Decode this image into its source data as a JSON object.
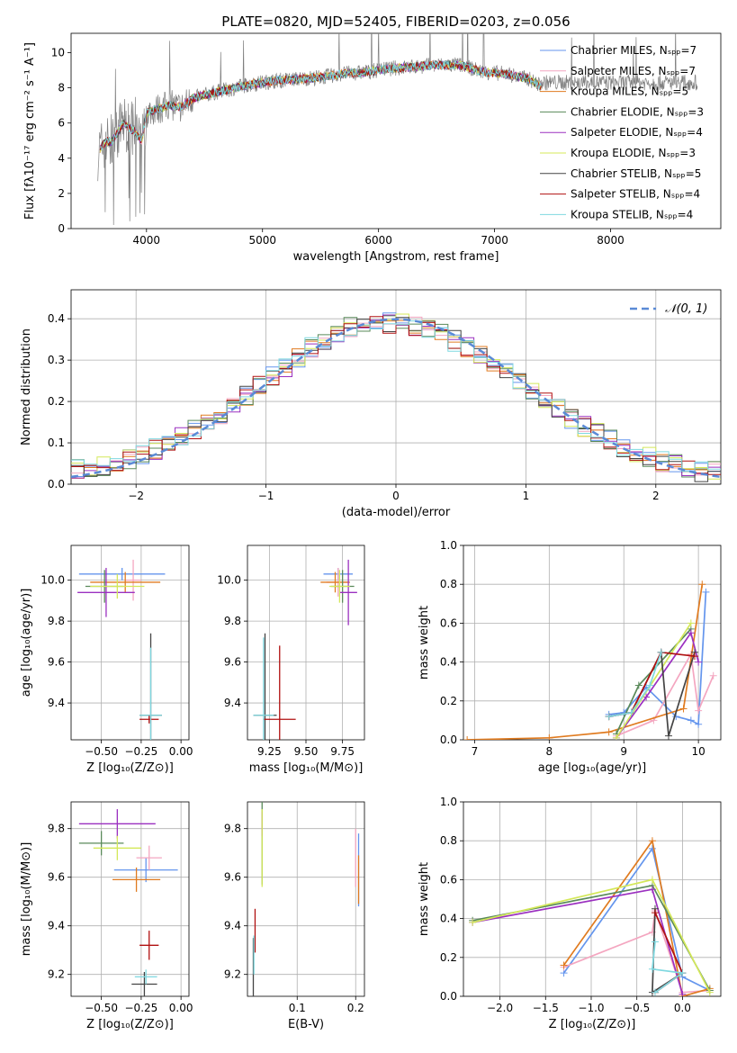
{
  "chart_data": [
    {
      "id": "spectrum",
      "type": "line",
      "title": "PLATE=0820, MJD=52405, FIBERID=0203, z=0.056",
      "xlabel": "wavelength [Angstrom, rest frame]",
      "ylabel": "Flux [fλ10⁻¹⁷ erg cm⁻² s⁻¹ A⁻¹]",
      "xlim": [
        3350,
        8950
      ],
      "ylim": [
        0,
        11.1
      ],
      "xticks": [
        4000,
        5000,
        6000,
        7000,
        8000
      ],
      "yticks": [
        0,
        2,
        4,
        6,
        8,
        10
      ],
      "grid": false,
      "legend_position": "right",
      "data_curve": {
        "x": [
          3580,
          3650,
          3700,
          3800,
          3900,
          3960,
          4000,
          4100,
          4200,
          4300,
          4400,
          4500,
          4700,
          4900,
          5100,
          5300,
          5500,
          5700,
          5900,
          6100,
          6300,
          6500,
          6700,
          6900,
          7100,
          7300,
          7400
        ],
        "y": [
          4.3,
          5.0,
          4.9,
          6.0,
          5.5,
          5.0,
          6.6,
          6.8,
          7.0,
          6.9,
          7.4,
          7.6,
          7.9,
          8.2,
          8.4,
          8.5,
          8.6,
          8.8,
          8.9,
          9.1,
          9.2,
          9.3,
          9.3,
          8.9,
          8.8,
          8.5,
          8.1
        ]
      },
      "observed_range": [
        3580,
        8750
      ],
      "legend": [
        {
          "label": "Chabrier MILES, Nₛₚₚ=7",
          "color": "#6495ED"
        },
        {
          "label": "Salpeter MILES, Nₛₚₚ=7",
          "color": "#F4A6C0"
        },
        {
          "label": "Kroupa MILES, Nₛₚₚ=5",
          "color": "#E07B20"
        },
        {
          "label": "Chabrier ELODIE, Nₛₚₚ=3",
          "color": "#5A8A5A"
        },
        {
          "label": "Salpeter ELODIE, Nₛₚₚ=4",
          "color": "#9B30C0"
        },
        {
          "label": "Kroupa ELODIE, Nₛₚₚ=3",
          "color": "#D4E85A"
        },
        {
          "label": "Chabrier STELIB, Nₛₚₚ=5",
          "color": "#444444"
        },
        {
          "label": "Salpeter STELIB, Nₛₚₚ=4",
          "color": "#B01010"
        },
        {
          "label": "Kroupa STELIB, Nₛₚₚ=4",
          "color": "#7FD8E0"
        }
      ]
    },
    {
      "id": "residuals",
      "type": "line",
      "xlabel": "(data-model)/error",
      "ylabel": "Normed distribution",
      "xlim": [
        -2.5,
        2.5
      ],
      "ylim": [
        0,
        0.47
      ],
      "xticks": [
        -2,
        -1,
        0,
        1,
        2
      ],
      "yticks": [
        0.0,
        0.1,
        0.2,
        0.3,
        0.4
      ],
      "grid": true,
      "legend": "𝒩(0, 1)",
      "legend_position": "top-right",
      "hist_bin_edges_range": [
        -2.5,
        2.5
      ],
      "hist_bin_width": 0.1,
      "hist_reference": {
        "x": [
          -2.45,
          -2.15,
          -1.85,
          -1.55,
          -1.25,
          -0.95,
          -0.65,
          -0.35,
          -0.05,
          0.25,
          0.55,
          0.85,
          1.15,
          1.45,
          1.75,
          2.05,
          2.35
        ],
        "y": [
          0.035,
          0.05,
          0.085,
          0.13,
          0.19,
          0.26,
          0.33,
          0.38,
          0.39,
          0.38,
          0.33,
          0.27,
          0.2,
          0.14,
          0.09,
          0.055,
          0.03
        ]
      },
      "gaussian": {
        "mean": 0,
        "sigma": 1,
        "color": "#5A8AD6"
      }
    },
    {
      "id": "age_vs_Z",
      "type": "scatter",
      "xlabel": "Z [log₁₀(Z/Z⊙)]",
      "ylabel": "age  [log₁₀(age/yr)]",
      "xlim": [
        -0.69,
        0.05
      ],
      "ylim": [
        9.22,
        10.17
      ],
      "xticks": [
        -0.5,
        -0.25,
        0.0
      ],
      "yticks": [
        9.4,
        9.6,
        9.8,
        10.0
      ],
      "grid": true,
      "points": [
        {
          "x": -0.37,
          "y": 10.03,
          "xerr": 0.27,
          "yerr": 0.03,
          "color": "#6495ED"
        },
        {
          "x": -0.3,
          "y": 10.0,
          "xerr": 0.05,
          "yerr": 0.1,
          "color": "#F4A6C0"
        },
        {
          "x": -0.35,
          "y": 9.99,
          "xerr": 0.22,
          "yerr": 0.05,
          "color": "#E07B20"
        },
        {
          "x": -0.48,
          "y": 9.97,
          "xerr": 0.12,
          "yerr": 0.08,
          "color": "#5A8A5A"
        },
        {
          "x": -0.47,
          "y": 9.94,
          "xerr": 0.18,
          "yerr": 0.12,
          "color": "#9B30C0"
        },
        {
          "x": -0.4,
          "y": 9.97,
          "xerr": 0.17,
          "yerr": 0.06,
          "color": "#D4E85A"
        },
        {
          "x": -0.19,
          "y": 9.34,
          "xerr": 0.07,
          "yerr": 0.4,
          "color": "#444444"
        },
        {
          "x": -0.2,
          "y": 9.32,
          "xerr": 0.06,
          "yerr": 0.02,
          "color": "#B01010"
        },
        {
          "x": -0.19,
          "y": 9.34,
          "xerr": 0.07,
          "yerr": 0.33,
          "color": "#7FD8E0"
        }
      ]
    },
    {
      "id": "age_vs_mass",
      "type": "scatter",
      "xlabel": "mass [log₁₀(M/M⊙)]",
      "ylabel": "",
      "xlim": [
        9.1,
        9.9
      ],
      "ylim": [
        9.22,
        10.17
      ],
      "xticks": [
        9.25,
        9.5,
        9.75
      ],
      "yticks": [
        9.4,
        9.6,
        9.8,
        10.0
      ],
      "grid": true,
      "points": [
        {
          "x": 9.72,
          "y": 10.03,
          "xerr": 0.1,
          "yerr": 0.03,
          "color": "#6495ED"
        },
        {
          "x": 9.72,
          "y": 9.99,
          "xerr": 0.08,
          "yerr": 0.07,
          "color": "#F4A6C0"
        },
        {
          "x": 9.7,
          "y": 9.99,
          "xerr": 0.1,
          "yerr": 0.05,
          "color": "#E07B20"
        },
        {
          "x": 9.75,
          "y": 9.97,
          "xerr": 0.08,
          "yerr": 0.08,
          "color": "#5A8A5A"
        },
        {
          "x": 9.79,
          "y": 9.94,
          "xerr": 0.06,
          "yerr": 0.16,
          "color": "#9B30C0"
        },
        {
          "x": 9.73,
          "y": 9.97,
          "xerr": 0.07,
          "yerr": 0.08,
          "color": "#D4E85A"
        },
        {
          "x": 9.22,
          "y": 9.34,
          "xerr": 0.08,
          "yerr": 0.4,
          "color": "#444444"
        },
        {
          "x": 9.32,
          "y": 9.32,
          "xerr": 0.11,
          "yerr": 0.36,
          "color": "#B01010"
        },
        {
          "x": 9.21,
          "y": 9.34,
          "xerr": 0.07,
          "yerr": 0.38,
          "color": "#7FD8E0"
        }
      ]
    },
    {
      "id": "weight_vs_age",
      "type": "line",
      "xlabel": "age  [log₁₀(age/yr)]",
      "ylabel": "mass weight",
      "xlim": [
        6.85,
        10.3
      ],
      "ylim": [
        0,
        1.0
      ],
      "xticks": [
        7,
        8,
        9,
        10
      ],
      "yticks": [
        0.0,
        0.2,
        0.4,
        0.6,
        0.8,
        1.0
      ],
      "grid": true,
      "series": [
        {
          "color": "#6495ED",
          "x": [
            8.8,
            9.0,
            9.3,
            9.7,
            9.9,
            10.0,
            10.1
          ],
          "y": [
            0.13,
            0.14,
            0.27,
            0.12,
            0.1,
            0.08,
            0.76
          ]
        },
        {
          "color": "#F4A6C0",
          "x": [
            8.9,
            9.4,
            9.9,
            10.0,
            10.2
          ],
          "y": [
            0.02,
            0.1,
            0.44,
            0.15,
            0.33
          ]
        },
        {
          "color": "#E07B20",
          "x": [
            6.9,
            8.0,
            8.8,
            9.8,
            10.05
          ],
          "y": [
            0.0,
            0.01,
            0.04,
            0.16,
            0.8
          ]
        },
        {
          "color": "#5A8A5A",
          "x": [
            8.9,
            9.2,
            9.9
          ],
          "y": [
            0.03,
            0.28,
            0.57
          ]
        },
        {
          "color": "#9B30C0",
          "x": [
            8.9,
            9.3,
            9.9,
            10.0
          ],
          "y": [
            0.01,
            0.22,
            0.55,
            0.4
          ]
        },
        {
          "color": "#D4E85A",
          "x": [
            8.9,
            9.9
          ],
          "y": [
            0.01,
            0.6
          ]
        },
        {
          "color": "#444444",
          "x": [
            8.8,
            9.1,
            9.5,
            9.6,
            9.95
          ],
          "y": [
            0.12,
            0.14,
            0.45,
            0.02,
            0.45
          ]
        },
        {
          "color": "#B01010",
          "x": [
            8.8,
            9.1,
            9.5,
            9.95
          ],
          "y": [
            0.12,
            0.14,
            0.45,
            0.43
          ]
        },
        {
          "color": "#7FD8E0",
          "x": [
            8.8,
            9.1,
            9.35,
            9.5
          ],
          "y": [
            0.12,
            0.14,
            0.28,
            0.45
          ]
        }
      ]
    },
    {
      "id": "mass_vs_Z",
      "type": "scatter",
      "xlabel": "Z [log₁₀(Z/Z⊙)]",
      "ylabel": "mass [log₁₀(M/M⊙)]",
      "xlim": [
        -0.69,
        0.05
      ],
      "ylim": [
        9.11,
        9.91
      ],
      "xticks": [
        -0.5,
        -0.25,
        0.0
      ],
      "yticks": [
        9.2,
        9.4,
        9.6,
        9.8
      ],
      "grid": true,
      "points": [
        {
          "x": -0.22,
          "y": 9.63,
          "xerr": 0.2,
          "yerr": 0.05,
          "color": "#6495ED"
        },
        {
          "x": -0.2,
          "y": 9.68,
          "xerr": 0.08,
          "yerr": 0.05,
          "color": "#F4A6C0"
        },
        {
          "x": -0.28,
          "y": 9.59,
          "xerr": 0.15,
          "yerr": 0.05,
          "color": "#E07B20"
        },
        {
          "x": -0.5,
          "y": 9.74,
          "xerr": 0.14,
          "yerr": 0.05,
          "color": "#5A8A5A"
        },
        {
          "x": -0.4,
          "y": 9.82,
          "xerr": 0.24,
          "yerr": 0.06,
          "color": "#9B30C0"
        },
        {
          "x": -0.4,
          "y": 9.72,
          "xerr": 0.15,
          "yerr": 0.05,
          "color": "#D4E85A"
        },
        {
          "x": -0.23,
          "y": 9.16,
          "xerr": 0.08,
          "yerr": 0.05,
          "color": "#444444"
        },
        {
          "x": -0.2,
          "y": 9.32,
          "xerr": 0.06,
          "yerr": 0.06,
          "color": "#B01010"
        },
        {
          "x": -0.22,
          "y": 9.19,
          "xerr": 0.07,
          "yerr": 0.03,
          "color": "#7FD8E0"
        }
      ]
    },
    {
      "id": "mass_vs_EBV",
      "type": "scatter",
      "xlabel": "E(B-V)",
      "ylabel": "",
      "xlim": [
        0.015,
        0.215
      ],
      "ylim": [
        9.11,
        9.91
      ],
      "xticks": [
        0.1,
        0.2
      ],
      "yticks": [
        9.2,
        9.4,
        9.6,
        9.8
      ],
      "grid": true,
      "points": [
        {
          "x": 0.205,
          "y": 9.63,
          "xerr": 0.0,
          "yerr": 0.15,
          "color": "#6495ED"
        },
        {
          "x": 0.2,
          "y": 9.68,
          "xerr": 0.0,
          "yerr": 0.12,
          "color": "#F4A6C0"
        },
        {
          "x": 0.205,
          "y": 9.59,
          "xerr": 0.0,
          "yerr": 0.1,
          "color": "#E07B20"
        },
        {
          "x": 0.04,
          "y": 9.74,
          "xerr": 0.0,
          "yerr": 0.17,
          "color": "#5A8A5A"
        },
        {
          "x": 0.04,
          "y": 9.82,
          "xerr": 0.0,
          "yerr": 0.05,
          "color": "#9B30C0"
        },
        {
          "x": 0.04,
          "y": 9.72,
          "xerr": 0.0,
          "yerr": 0.16,
          "color": "#D4E85A"
        },
        {
          "x": 0.025,
          "y": 9.2,
          "xerr": 0.0,
          "yerr": 0.15,
          "color": "#444444"
        },
        {
          "x": 0.028,
          "y": 9.38,
          "xerr": 0.0,
          "yerr": 0.09,
          "color": "#B01010"
        },
        {
          "x": 0.026,
          "y": 9.28,
          "xerr": 0.0,
          "yerr": 0.08,
          "color": "#7FD8E0"
        }
      ]
    },
    {
      "id": "weight_vs_Z",
      "type": "line",
      "xlabel": "Z [log₁₀(Z/Z⊙)]",
      "ylabel": "mass weight",
      "xlim": [
        -2.4,
        0.42
      ],
      "ylim": [
        0,
        1.0
      ],
      "xticks": [
        -2.0,
        -1.5,
        -1.0,
        -0.5,
        0.0
      ],
      "yticks": [
        0.0,
        0.2,
        0.4,
        0.6,
        0.8,
        1.0
      ],
      "grid": true,
      "series": [
        {
          "color": "#6495ED",
          "x": [
            -1.3,
            -0.33,
            0.0,
            0.3
          ],
          "y": [
            0.12,
            0.76,
            0.1,
            0.03
          ]
        },
        {
          "color": "#F4A6C0",
          "x": [
            -1.3,
            -0.33,
            -0.3,
            0.0,
            0.3
          ],
          "y": [
            0.15,
            0.33,
            0.44,
            0.02,
            0.03
          ]
        },
        {
          "color": "#E07B20",
          "x": [
            -1.3,
            -0.33,
            0.0,
            0.3
          ],
          "y": [
            0.16,
            0.8,
            0.0,
            0.04
          ]
        },
        {
          "color": "#5A8A5A",
          "x": [
            -2.3,
            -0.33,
            0.3
          ],
          "y": [
            0.39,
            0.57,
            0.03
          ]
        },
        {
          "color": "#9B30C0",
          "x": [
            -2.3,
            -0.33,
            0.0
          ],
          "y": [
            0.38,
            0.55,
            0.01
          ]
        },
        {
          "color": "#D4E85A",
          "x": [
            -2.3,
            -0.33,
            0.3
          ],
          "y": [
            0.38,
            0.6,
            0.02
          ]
        },
        {
          "color": "#444444",
          "x": [
            -0.3,
            -0.33,
            0.0,
            -0.3
          ],
          "y": [
            0.45,
            0.02,
            0.12,
            0.02
          ]
        },
        {
          "color": "#B01010",
          "x": [
            -0.3,
            0.0,
            -0.3
          ],
          "y": [
            0.43,
            0.12,
            0.02
          ]
        },
        {
          "color": "#7FD8E0",
          "x": [
            -0.3,
            -0.33,
            0.0,
            -0.3
          ],
          "y": [
            0.28,
            0.14,
            0.12,
            0.02
          ]
        }
      ]
    }
  ]
}
